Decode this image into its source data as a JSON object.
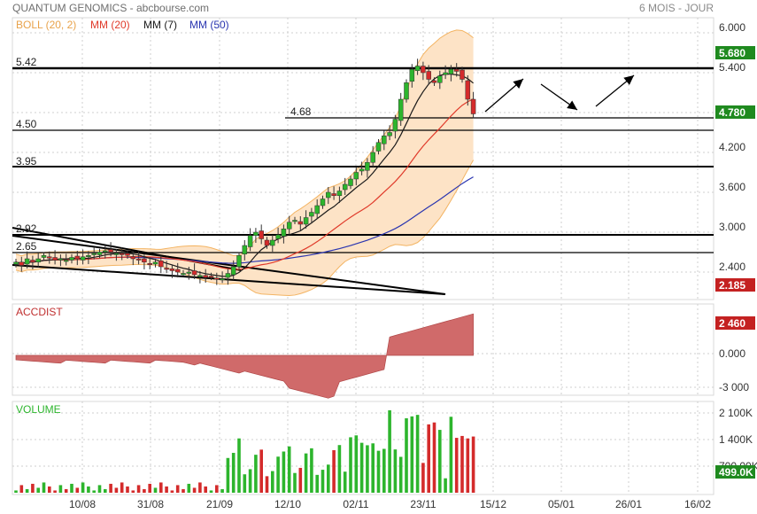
{
  "header": {
    "title": "QUANTUM GENOMICS - abcbourse.com",
    "period": "6 MOIS - JOUR"
  },
  "legend": {
    "boll": "BOLL (20, 2)",
    "mm20": "MM (20)",
    "mm7": "MM (7)",
    "mm50": "MM (50)"
  },
  "colors": {
    "up": "#2db52d",
    "down": "#d42b2b",
    "boll_fill": "#fde3c6",
    "boll_line": "#f3b463",
    "mm20": "#e03a2a",
    "mm7": "#1a1a1a",
    "mm50": "#2a35b0",
    "accdist": "#d06a6a",
    "grid": "#cfcfcf",
    "tag_green": "#1f8a1f",
    "tag_red": "#c42121"
  },
  "x_axis": {
    "ticks": [
      "10/08",
      "31/08",
      "21/09",
      "12/10",
      "02/11",
      "23/11",
      "15/12",
      "05/01",
      "26/01",
      "16/02"
    ]
  },
  "price_axis": {
    "ticks": [
      "6.000",
      "5.400",
      "4.800",
      "4.200",
      "3.600",
      "3.000",
      "2.400"
    ],
    "tag_last": "5.680",
    "tag_mid": "4.780",
    "tag_low": "2.185"
  },
  "levels": {
    "l542": "5.42",
    "l468": "4.68",
    "l450": "4.50",
    "l395": "3.95",
    "l292": "2.92",
    "l265": "2.65"
  },
  "accdist_panel": {
    "title": "ACCDIST",
    "ticks": [
      "0.000",
      "-3 000"
    ],
    "tag": "2 460"
  },
  "volume_panel": {
    "title": "VOLUME",
    "ticks": [
      "2 100K",
      "1 400K",
      "700.00K"
    ],
    "tag": "499.0K"
  },
  "chart_data": {
    "type": "candlestick",
    "dates": [
      "10/08",
      "31/08",
      "21/09",
      "12/10",
      "02/11",
      "23/11"
    ],
    "ylim": [
      2.0,
      6.1
    ],
    "closes": [
      2.55,
      2.5,
      2.6,
      2.55,
      2.6,
      2.65,
      2.62,
      2.58,
      2.6,
      2.58,
      2.62,
      2.6,
      2.63,
      2.65,
      2.68,
      2.7,
      2.72,
      2.7,
      2.68,
      2.66,
      2.65,
      2.6,
      2.58,
      2.55,
      2.52,
      2.55,
      2.48,
      2.45,
      2.42,
      2.4,
      2.38,
      2.4,
      2.36,
      2.35,
      2.32,
      2.33,
      2.3,
      2.3,
      2.38,
      2.48,
      2.65,
      2.8,
      2.95,
      3.0,
      2.9,
      2.8,
      2.88,
      2.96,
      3.05,
      3.15,
      3.18,
      3.12,
      3.22,
      3.3,
      3.4,
      3.5,
      3.6,
      3.55,
      3.62,
      3.72,
      3.8,
      3.9,
      3.95,
      4.05,
      4.2,
      4.35,
      4.45,
      4.5,
      4.7,
      5.0,
      5.25,
      5.45,
      5.5,
      5.4,
      5.3,
      5.25,
      5.35,
      5.4,
      5.45,
      5.42,
      5.3,
      5.0,
      4.78
    ],
    "accdist": {
      "ticks": [
        0,
        -3000
      ],
      "last": 2460
    },
    "volume": {
      "ticks": [
        2100000,
        1400000,
        700000
      ],
      "last": 499000
    }
  }
}
